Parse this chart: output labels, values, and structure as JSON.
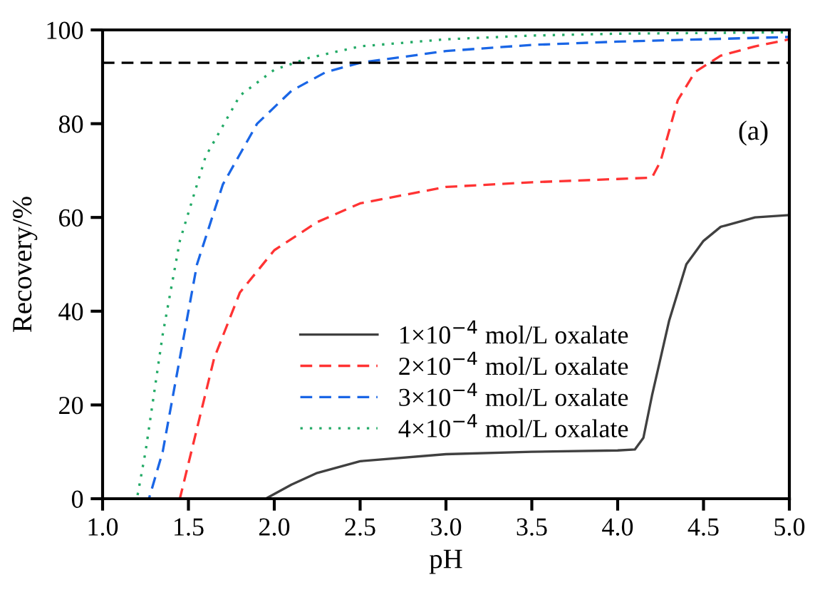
{
  "chart_data": {
    "type": "line",
    "xlabel": "pH",
    "ylabel": "Recovery/%",
    "xlim": [
      1.0,
      5.0
    ],
    "ylim": [
      0,
      100
    ],
    "xticks": [
      {
        "value": 1.0,
        "label": "1.0"
      },
      {
        "value": 1.5,
        "label": "1.5"
      },
      {
        "value": 2.0,
        "label": "2.0"
      },
      {
        "value": 2.5,
        "label": "2.5"
      },
      {
        "value": 3.0,
        "label": "3.0"
      },
      {
        "value": 3.5,
        "label": "3.5"
      },
      {
        "value": 4.0,
        "label": "4.0"
      },
      {
        "value": 4.5,
        "label": "4.5"
      },
      {
        "value": 5.0,
        "label": "5.0"
      }
    ],
    "yticks": [
      0,
      20,
      40,
      60,
      80,
      100
    ],
    "grid": false,
    "legend": "bottom right",
    "marker": "none",
    "annotations": [
      "(a)"
    ],
    "ref_lines": [
      {
        "axis": "y",
        "value": 93,
        "color": "#000000",
        "line_style": "dashed"
      }
    ],
    "series": [
      {
        "name": "1×10$^{−4}$ mol/L oxalate",
        "color": "#404040",
        "line_style": "solid",
        "x": [
          1.0,
          1.95,
          2.1,
          2.25,
          2.5,
          3.0,
          3.5,
          4.0,
          4.1,
          4.15,
          4.2,
          4.3,
          4.4,
          4.5,
          4.6,
          4.8,
          5.0
        ],
        "values": [
          0,
          0,
          3,
          5.5,
          8,
          9.5,
          10,
          10.3,
          10.5,
          13,
          22,
          38,
          50,
          55,
          58,
          60,
          60.5
        ]
      },
      {
        "name": "2×10$^{−4}$ mol/L oxalate",
        "color": "#ff3333",
        "line_style": "dashed",
        "x": [
          1.0,
          1.45,
          1.55,
          1.65,
          1.8,
          2.0,
          2.25,
          2.5,
          3.0,
          3.5,
          4.0,
          4.2,
          4.25,
          4.35,
          4.45,
          4.6,
          4.8,
          5.0
        ],
        "values": [
          0,
          0,
          15,
          30,
          44,
          53,
          59,
          63,
          66.5,
          67.5,
          68.2,
          68.5,
          72,
          85,
          91,
          94.5,
          96.5,
          98
        ]
      },
      {
        "name": "3×10$^{−4}$ mol/L oxalate",
        "color": "#1a66e6",
        "line_style": "dashed",
        "x": [
          1.0,
          1.27,
          1.35,
          1.45,
          1.55,
          1.7,
          1.9,
          2.1,
          2.3,
          2.5,
          3.0,
          3.5,
          4.0,
          4.5,
          5.0
        ],
        "values": [
          0,
          0,
          10,
          30,
          50,
          67,
          80,
          87,
          91,
          93,
          95.5,
          96.8,
          97.5,
          98,
          98.5
        ]
      },
      {
        "name": "4×10$^{−4}$ mol/L oxalate",
        "color": "#22aa66",
        "line_style": "dotted",
        "x": [
          1.0,
          1.2,
          1.25,
          1.35,
          1.45,
          1.6,
          1.8,
          2.0,
          2.2,
          2.5,
          3.0,
          3.5,
          4.0,
          5.0
        ],
        "values": [
          0,
          0,
          10,
          35,
          55,
          73,
          86,
          91.5,
          94,
          96.5,
          98,
          98.8,
          99.2,
          99.5
        ]
      }
    ]
  }
}
